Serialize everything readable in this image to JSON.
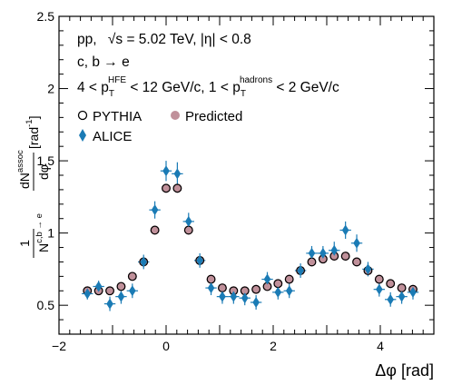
{
  "chart_data": {
    "type": "scatter",
    "title": "",
    "xlabel": "Δφ [rad]",
    "ylabel": {
      "numerator": "dN",
      "numerator_sup": "assoc",
      "denominator": "dφ",
      "prefix_num": "1",
      "prefix_den": "N",
      "prefix_den_sup": "c,b → e",
      "unit": "[rad",
      "unit_sup": "-1",
      "unit_close": "]"
    },
    "xlim": [
      -2,
      5
    ],
    "ylim": [
      0.3,
      2.5
    ],
    "x_ticks": [
      -2,
      0,
      2,
      4
    ],
    "y_ticks": [
      0.5,
      1,
      1.5,
      2,
      2.5
    ],
    "y_tick_labels": [
      "0.5",
      "1",
      "1.5",
      "2",
      "2.5"
    ],
    "x_tick_labels": [
      "−2",
      "0",
      "2",
      "4"
    ],
    "annotations": {
      "line1_a": "pp,",
      "line1_b": "√s = 5.02 TeV, |η| < 0.8",
      "line2": "c, b   → e",
      "line3_a": "4 < p",
      "line3_sub1": "T",
      "line3_sup1": "HFE",
      "line3_b": " < 12 GeV/c, 1 < p",
      "line3_sub2": "T",
      "line3_sup2": "hadrons",
      "line3_c": " < 2 GeV/c"
    },
    "legend": [
      {
        "label": "PYTHIA",
        "marker": "open-circle",
        "color": "#000000"
      },
      {
        "label": "Predicted",
        "marker": "filled-circle",
        "color": "#c0909a"
      },
      {
        "label": "ALICE",
        "marker": "diamond",
        "color": "#1a7bb5"
      }
    ],
    "series": [
      {
        "name": "ALICE",
        "marker": "diamond",
        "color": "#1a7bb5",
        "x_err": 0.105,
        "x": [
          -1.47,
          -1.26,
          -1.05,
          -0.84,
          -0.63,
          -0.42,
          -0.21,
          -0.0,
          0.21,
          0.42,
          0.63,
          0.84,
          1.05,
          1.26,
          1.47,
          1.68,
          1.89,
          2.09,
          2.3,
          2.51,
          2.72,
          2.93,
          3.14,
          3.35,
          3.56,
          3.77,
          3.98,
          4.19,
          4.4,
          4.61
        ],
        "y": [
          0.58,
          0.63,
          0.51,
          0.56,
          0.6,
          0.8,
          1.16,
          1.43,
          1.41,
          1.08,
          0.81,
          0.62,
          0.56,
          0.56,
          0.55,
          0.52,
          0.68,
          0.59,
          0.6,
          0.74,
          0.86,
          0.86,
          0.88,
          1.02,
          0.93,
          0.75,
          0.61,
          0.54,
          0.56,
          0.59
        ],
        "y_err": [
          0.04,
          0.04,
          0.05,
          0.05,
          0.05,
          0.05,
          0.06,
          0.07,
          0.08,
          0.06,
          0.05,
          0.05,
          0.05,
          0.05,
          0.05,
          0.05,
          0.05,
          0.05,
          0.05,
          0.05,
          0.05,
          0.05,
          0.06,
          0.06,
          0.06,
          0.05,
          0.05,
          0.05,
          0.05,
          0.05
        ]
      },
      {
        "name": "Predicted",
        "marker": "filled-circle",
        "color": "#c0909a",
        "x": [
          -1.47,
          -1.26,
          -1.05,
          -0.84,
          -0.63,
          -0.42,
          -0.21,
          -0.0,
          0.21,
          0.42,
          0.63,
          0.84,
          1.05,
          1.26,
          1.47,
          1.68,
          1.89,
          2.09,
          2.3,
          2.51,
          2.72,
          2.93,
          3.14,
          3.35,
          3.56,
          3.77,
          3.98,
          4.19,
          4.4,
          4.61
        ],
        "y": [
          0.6,
          0.6,
          0.6,
          0.63,
          0.7,
          0.8,
          1.02,
          1.31,
          1.31,
          1.02,
          0.81,
          0.68,
          0.62,
          0.6,
          0.6,
          0.61,
          0.63,
          0.65,
          0.68,
          0.74,
          0.8,
          0.82,
          0.84,
          0.84,
          0.8,
          0.74,
          0.68,
          0.65,
          0.62,
          0.61
        ]
      },
      {
        "name": "PYTHIA",
        "marker": "open-circle",
        "color": "#000000",
        "x": [
          -1.47,
          -1.26,
          -1.05,
          -0.84,
          -0.63,
          -0.42,
          -0.21,
          -0.0,
          0.21,
          0.42,
          0.63,
          0.84,
          1.05,
          1.26,
          1.47,
          1.68,
          1.89,
          2.09,
          2.3,
          2.51,
          2.72,
          2.93,
          3.14,
          3.35,
          3.56,
          3.77,
          3.98,
          4.19,
          4.4,
          4.61
        ],
        "y": [
          0.6,
          0.6,
          0.6,
          0.63,
          0.7,
          0.8,
          1.02,
          1.31,
          1.31,
          1.02,
          0.81,
          0.68,
          0.62,
          0.6,
          0.6,
          0.61,
          0.63,
          0.65,
          0.68,
          0.74,
          0.8,
          0.82,
          0.84,
          0.84,
          0.8,
          0.74,
          0.68,
          0.65,
          0.62,
          0.61
        ]
      }
    ],
    "grid": false,
    "legend_position": "top-left"
  }
}
